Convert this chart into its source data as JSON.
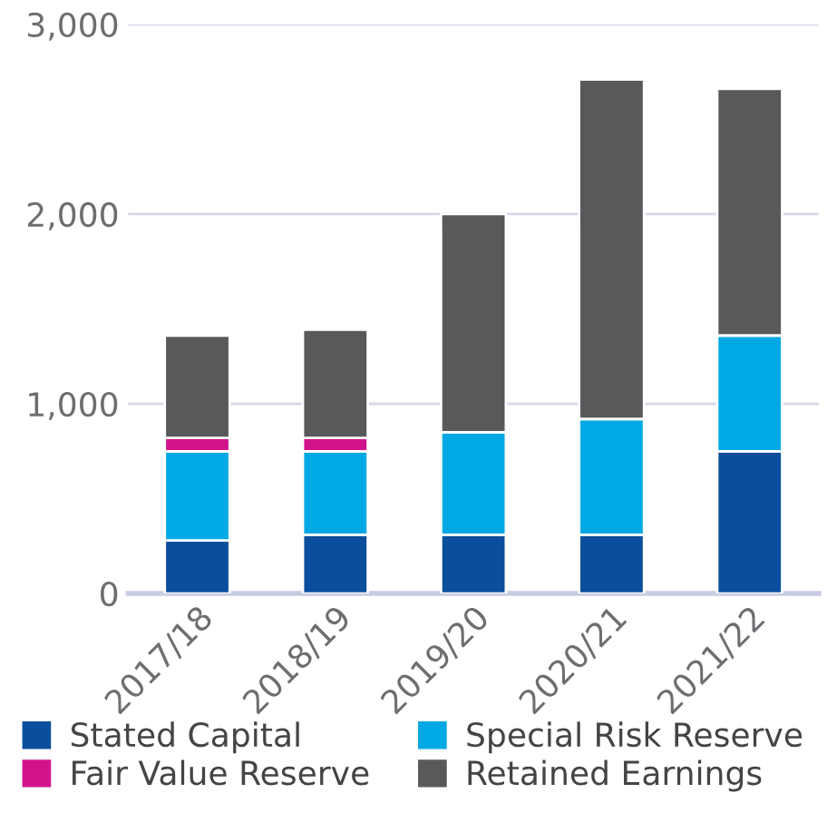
{
  "chart_data": {
    "type": "bar",
    "stacked": true,
    "categories": [
      "2017/18",
      "2018/19",
      "2019/20",
      "2020/21",
      "2021/22"
    ],
    "series": [
      {
        "name": "Stated Capital",
        "color": "#0b4f9c",
        "values": [
          280,
          310,
          310,
          310,
          750
        ]
      },
      {
        "name": "Special Risk Reserve",
        "color": "#00a9e3",
        "values": [
          470,
          440,
          540,
          610,
          610
        ]
      },
      {
        "name": "Fair Value Reserve",
        "color": "#d2148c",
        "values": [
          70,
          70,
          null,
          null,
          null
        ]
      },
      {
        "name": "Retained Earnings",
        "color": "#58595b",
        "values": [
          540,
          570,
          1150,
          1790,
          1300
        ]
      }
    ],
    "ylim": [
      0,
      3000
    ],
    "yticks": [
      {
        "value": 0,
        "label": "0"
      },
      {
        "value": 1000,
        "label": "1,000"
      },
      {
        "value": 2000,
        "label": "2,000"
      },
      {
        "value": 3000,
        "label": "3,000"
      }
    ],
    "grid": "y",
    "legend": "bottom"
  }
}
